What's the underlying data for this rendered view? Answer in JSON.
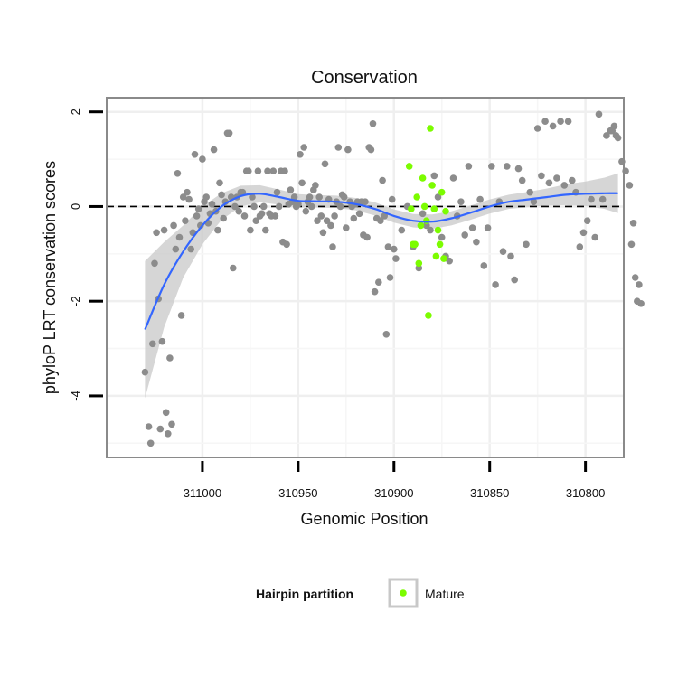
{
  "chart_data": {
    "type": "scatter",
    "title": "Conservation",
    "xlabel": "Genomic Position",
    "ylabel": "phyloP LRT conservation scores",
    "x_reversed": true,
    "xlim": [
      311050,
      310780
    ],
    "ylim": [
      -5.3,
      2.3
    ],
    "x_ticks": [
      311000,
      310950,
      310900,
      310850,
      310800
    ],
    "y_ticks": [
      2,
      0,
      -2,
      -4
    ],
    "grid": true,
    "reference_line": {
      "y": 0,
      "style": "dashed",
      "color": "#000000"
    },
    "legend": {
      "title": "Hairpin partition",
      "placement": "bottom",
      "entries": [
        "Mature"
      ]
    },
    "colors": {
      "other": "#8c8c8c",
      "mature": "#7cfc00",
      "smooth": "#3366ff",
      "band": "#c8c8c8"
    },
    "series": [
      {
        "name": "",
        "color": "#8c8c8c",
        "points": [
          [
            311030,
            -3.5
          ],
          [
            311028,
            -4.65
          ],
          [
            311027,
            -5.0
          ],
          [
            311026,
            -2.9
          ],
          [
            311025,
            -1.2
          ],
          [
            311024,
            -0.55
          ],
          [
            311023,
            -1.95
          ],
          [
            311022,
            -4.7
          ],
          [
            311021,
            -2.85
          ],
          [
            311020,
            -0.5
          ],
          [
            311019,
            -4.35
          ],
          [
            311018,
            -4.8
          ],
          [
            311017,
            -3.2
          ],
          [
            311016,
            -4.6
          ],
          [
            311015,
            -0.4
          ],
          [
            311014,
            -0.9
          ],
          [
            311013,
            0.7
          ],
          [
            311012,
            -0.65
          ],
          [
            311011,
            -2.3
          ],
          [
            311010,
            0.2
          ],
          [
            311009,
            -0.3
          ],
          [
            311008,
            0.3
          ],
          [
            311007,
            0.15
          ],
          [
            311006,
            -0.9
          ],
          [
            311005,
            -0.55
          ],
          [
            311004,
            1.1
          ],
          [
            311003,
            -0.2
          ],
          [
            311002,
            -0.05
          ],
          [
            311001,
            -0.4
          ],
          [
            311000,
            1.0
          ],
          [
            310999,
            0.1
          ],
          [
            310998,
            0.2
          ],
          [
            310997,
            -0.35
          ],
          [
            310996,
            -0.15
          ],
          [
            310995,
            0.05
          ],
          [
            310994,
            1.2
          ],
          [
            310993,
            -0.1
          ],
          [
            310992,
            -0.5
          ],
          [
            310991,
            0.5
          ],
          [
            310990,
            0.25
          ],
          [
            310989,
            -0.25
          ],
          [
            310988,
            0.1
          ],
          [
            310987,
            1.55
          ],
          [
            310986,
            1.55
          ],
          [
            310985,
            0.2
          ],
          [
            310984,
            -1.3
          ],
          [
            310983,
            0.0
          ],
          [
            310982,
            0.2
          ],
          [
            310981,
            -0.1
          ],
          [
            310980,
            0.3
          ],
          [
            310979,
            0.3
          ],
          [
            310978,
            -0.2
          ],
          [
            310977,
            0.75
          ],
          [
            310976,
            0.75
          ],
          [
            310975,
            -0.5
          ],
          [
            310974,
            0.2
          ],
          [
            310973,
            0.0
          ],
          [
            310972,
            -0.3
          ],
          [
            310971,
            0.75
          ],
          [
            310970,
            -0.2
          ],
          [
            310969,
            -0.15
          ],
          [
            310968,
            0.0
          ],
          [
            310967,
            -0.5
          ],
          [
            310966,
            0.75
          ],
          [
            310965,
            -0.15
          ],
          [
            310964,
            -0.2
          ],
          [
            310963,
            0.75
          ],
          [
            310962,
            -0.2
          ],
          [
            310961,
            0.3
          ],
          [
            310960,
            0.0
          ],
          [
            310959,
            0.75
          ],
          [
            310958,
            -0.75
          ],
          [
            310957,
            0.75
          ],
          [
            310956,
            -0.8
          ],
          [
            310955,
            0.05
          ],
          [
            310954,
            0.35
          ],
          [
            310953,
            0.1
          ],
          [
            310952,
            0.2
          ],
          [
            310951,
            0.0
          ],
          [
            310950,
            0.05
          ],
          [
            310949,
            1.1
          ],
          [
            310948,
            0.5
          ],
          [
            310947,
            1.25
          ],
          [
            310946,
            -0.1
          ],
          [
            310945,
            0.1
          ],
          [
            310944,
            0.2
          ],
          [
            310943,
            0.0
          ],
          [
            310942,
            0.35
          ],
          [
            310941,
            0.45
          ],
          [
            310940,
            -0.3
          ],
          [
            310939,
            0.2
          ],
          [
            310938,
            -0.2
          ],
          [
            310937,
            -0.55
          ],
          [
            310936,
            0.9
          ],
          [
            310935,
            -0.3
          ],
          [
            310934,
            0.15
          ],
          [
            310933,
            -0.4
          ],
          [
            310932,
            -0.85
          ],
          [
            310931,
            -0.2
          ],
          [
            310930,
            0.1
          ],
          [
            310929,
            1.25
          ],
          [
            310928,
            0.0
          ],
          [
            310927,
            0.25
          ],
          [
            310926,
            0.2
          ],
          [
            310925,
            -0.45
          ],
          [
            310924,
            1.2
          ],
          [
            310923,
            0.1
          ],
          [
            310922,
            0.0
          ],
          [
            310921,
            -0.25
          ],
          [
            310920,
            0.05
          ],
          [
            310919,
            0.1
          ],
          [
            310918,
            -0.15
          ],
          [
            310917,
            0.1
          ],
          [
            310916,
            -0.6
          ],
          [
            310915,
            0.1
          ],
          [
            310914,
            -0.65
          ],
          [
            310913,
            1.25
          ],
          [
            310912,
            1.2
          ],
          [
            310911,
            1.75
          ],
          [
            310910,
            -1.8
          ],
          [
            310909,
            -0.25
          ],
          [
            310908,
            -1.6
          ],
          [
            310907,
            -0.3
          ],
          [
            310906,
            0.55
          ],
          [
            310905,
            -0.2
          ],
          [
            310904,
            -2.7
          ],
          [
            310903,
            -0.85
          ],
          [
            310902,
            -1.5
          ],
          [
            310901,
            0.15
          ],
          [
            310900,
            -0.9
          ],
          [
            310899,
            -1.1
          ],
          [
            310896,
            -0.5
          ],
          [
            310893,
            0.0
          ],
          [
            310890,
            -0.85
          ],
          [
            310887,
            -1.3
          ],
          [
            310885,
            -0.15
          ],
          [
            310883,
            -0.4
          ],
          [
            310881,
            -0.5
          ],
          [
            310879,
            0.65
          ],
          [
            310877,
            0.2
          ],
          [
            310875,
            -0.65
          ],
          [
            310873,
            -1.05
          ],
          [
            310871,
            -1.15
          ],
          [
            310869,
            0.6
          ],
          [
            310867,
            -0.2
          ],
          [
            310865,
            0.1
          ],
          [
            310863,
            -0.6
          ],
          [
            310861,
            0.85
          ],
          [
            310859,
            -0.45
          ],
          [
            310857,
            -0.75
          ],
          [
            310855,
            0.15
          ],
          [
            310853,
            -1.25
          ],
          [
            310851,
            -0.45
          ],
          [
            310849,
            0.85
          ],
          [
            310847,
            -1.65
          ],
          [
            310845,
            0.1
          ],
          [
            310843,
            -0.95
          ],
          [
            310841,
            0.85
          ],
          [
            310839,
            -1.05
          ],
          [
            310837,
            -1.55
          ],
          [
            310835,
            0.8
          ],
          [
            310833,
            0.55
          ],
          [
            310831,
            -0.8
          ],
          [
            310829,
            0.3
          ],
          [
            310827,
            0.1
          ],
          [
            310825,
            1.65
          ],
          [
            310823,
            0.65
          ],
          [
            310821,
            1.8
          ],
          [
            310819,
            0.5
          ],
          [
            310817,
            1.7
          ],
          [
            310815,
            0.6
          ],
          [
            310813,
            1.8
          ],
          [
            310811,
            0.45
          ],
          [
            310809,
            1.8
          ],
          [
            310807,
            0.55
          ],
          [
            310805,
            0.3
          ],
          [
            310803,
            -0.85
          ],
          [
            310801,
            -0.55
          ],
          [
            310799,
            -0.3
          ],
          [
            310797,
            0.15
          ],
          [
            310795,
            -0.65
          ],
          [
            310793,
            1.95
          ],
          [
            310791,
            0.15
          ],
          [
            310789,
            1.5
          ],
          [
            310787,
            1.6
          ],
          [
            310786,
            1.6
          ],
          [
            310785,
            1.7
          ],
          [
            310784,
            1.5
          ],
          [
            310783,
            1.45
          ],
          [
            310781,
            0.95
          ],
          [
            310779,
            0.75
          ],
          [
            310777,
            0.45
          ],
          [
            310776,
            -0.8
          ],
          [
            310775,
            -0.35
          ],
          [
            310774,
            -1.5
          ],
          [
            310773,
            -2.0
          ],
          [
            310772,
            -1.65
          ],
          [
            310771,
            -2.05
          ]
        ]
      },
      {
        "name": "Mature",
        "color": "#7cfc00",
        "points": [
          [
            310892,
            0.85
          ],
          [
            310891,
            -0.05
          ],
          [
            310890,
            -0.8
          ],
          [
            310889,
            -0.8
          ],
          [
            310888,
            0.2
          ],
          [
            310887,
            -1.2
          ],
          [
            310886,
            -0.4
          ],
          [
            310885,
            0.6
          ],
          [
            310884,
            0.0
          ],
          [
            310883,
            -0.3
          ],
          [
            310882,
            -2.3
          ],
          [
            310881,
            1.65
          ],
          [
            310880,
            0.45
          ],
          [
            310879,
            -0.05
          ],
          [
            310878,
            -1.05
          ],
          [
            310877,
            -0.5
          ],
          [
            310876,
            -0.8
          ],
          [
            310875,
            0.3
          ],
          [
            310874,
            -1.1
          ],
          [
            310873,
            -0.1
          ]
        ]
      }
    ],
    "smooth": {
      "x": [
        311030,
        311020,
        311010,
        311000,
        310990,
        310980,
        310970,
        310960,
        310950,
        310940,
        310930,
        310920,
        310910,
        310900,
        310890,
        310880,
        310870,
        310860,
        310850,
        310840,
        310830,
        310820,
        310810,
        310800,
        310790,
        310783
      ],
      "y": [
        -2.6,
        -1.65,
        -0.95,
        -0.4,
        0.0,
        0.22,
        0.27,
        0.2,
        0.12,
        0.11,
        0.1,
        0.05,
        -0.05,
        -0.2,
        -0.3,
        -0.32,
        -0.25,
        -0.13,
        0.0,
        0.1,
        0.15,
        0.2,
        0.25,
        0.27,
        0.28,
        0.28
      ],
      "band": [
        1.45,
        0.9,
        0.55,
        0.4,
        0.28,
        0.22,
        0.18,
        0.16,
        0.14,
        0.13,
        0.13,
        0.13,
        0.14,
        0.14,
        0.14,
        0.15,
        0.15,
        0.15,
        0.15,
        0.15,
        0.16,
        0.18,
        0.22,
        0.26,
        0.33,
        0.42
      ]
    }
  }
}
